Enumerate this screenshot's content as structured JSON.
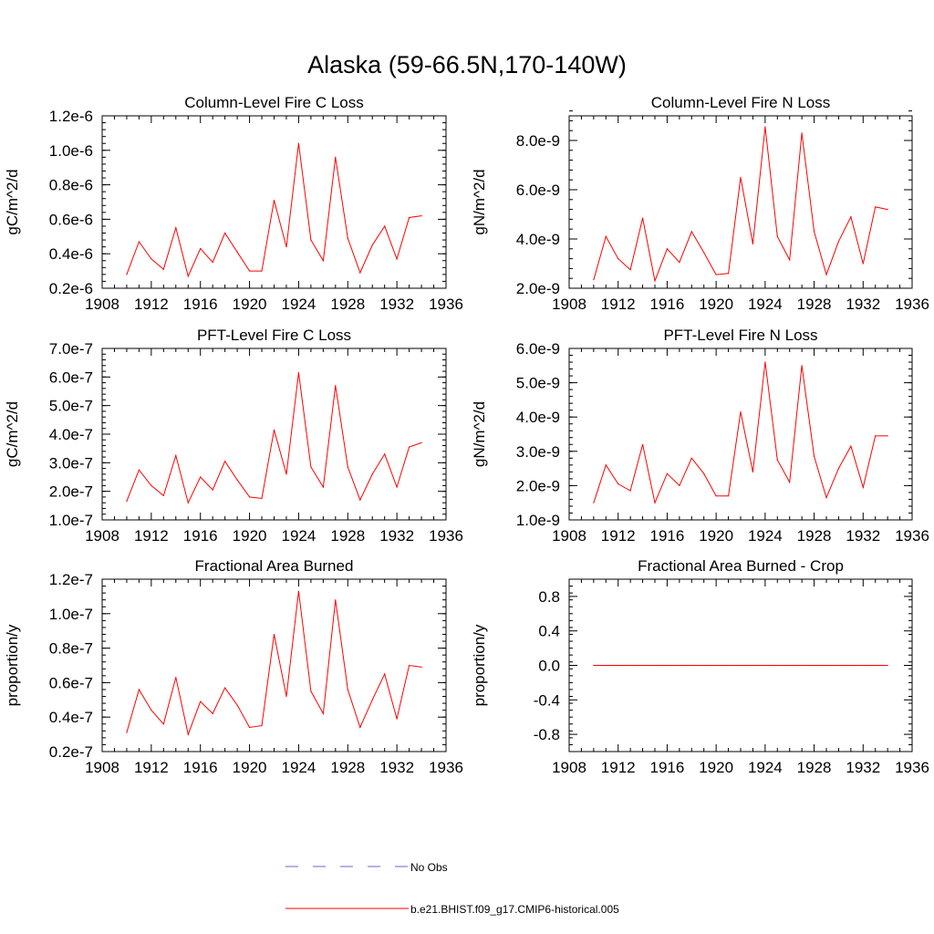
{
  "main_title": "Alaska (59-66.5N,170-140W)",
  "colors": {
    "model_line": "#ff0000",
    "obs_line": "#6666cc",
    "axis": "#000000"
  },
  "legend": {
    "obs_label": "No Obs",
    "model_label": "b.e21.BHIST.f09_g17.CMIP6-historical.005"
  },
  "chart_data": [
    {
      "type": "line",
      "title": "Column-Level Fire C Loss",
      "ylabel": "gC/m^2/d",
      "xlabel": "",
      "xlim": [
        1908,
        1936
      ],
      "ylim": [
        2e-07,
        1.2e-06
      ],
      "xticks": [
        "1908",
        "1912",
        "1916",
        "1920",
        "1924",
        "1928",
        "1932",
        "1936"
      ],
      "yticks": [
        {
          "value": 2e-07,
          "label": "0.2e-6"
        },
        {
          "value": 4e-07,
          "label": "0.4e-6"
        },
        {
          "value": 6e-07,
          "label": "0.6e-6"
        },
        {
          "value": 8e-07,
          "label": "0.8e-6"
        },
        {
          "value": 1e-06,
          "label": "1.0e-6"
        },
        {
          "value": 1.2e-06,
          "label": "1.2e-6"
        }
      ],
      "x": [
        1910,
        1911,
        1912,
        1913,
        1914,
        1915,
        1916,
        1917,
        1918,
        1919,
        1920,
        1921,
        1922,
        1923,
        1924,
        1925,
        1926,
        1927,
        1928,
        1929,
        1930,
        1931,
        1932,
        1933,
        1934
      ],
      "series": [
        {
          "name": "b.e21.BHIST.f09_g17.CMIP6-historical.005",
          "values": [
            2.8e-07,
            4.7e-07,
            3.7e-07,
            3.1e-07,
            5.5e-07,
            2.7e-07,
            4.3e-07,
            3.5e-07,
            5.2e-07,
            4.1e-07,
            3e-07,
            3e-07,
            7.1e-07,
            4.4e-07,
            1.04e-06,
            4.8e-07,
            3.6e-07,
            9.6e-07,
            4.9e-07,
            2.9e-07,
            4.5e-07,
            5.6e-07,
            3.7e-07,
            6.1e-07,
            6.2e-07
          ]
        }
      ]
    },
    {
      "type": "line",
      "title": "Column-Level Fire N Loss",
      "ylabel": "gN/m^2/d",
      "xlabel": "",
      "xlim": [
        1908,
        1936
      ],
      "ylim": [
        2e-09,
        9e-09
      ],
      "xticks": [
        "1908",
        "1912",
        "1916",
        "1920",
        "1924",
        "1928",
        "1932",
        "1936"
      ],
      "yticks": [
        {
          "value": 2e-09,
          "label": "2.0e-9"
        },
        {
          "value": 4e-09,
          "label": "4.0e-9"
        },
        {
          "value": 6e-09,
          "label": "6.0e-9"
        },
        {
          "value": 8e-09,
          "label": "8.0e-9"
        }
      ],
      "x": [
        1910,
        1911,
        1912,
        1913,
        1914,
        1915,
        1916,
        1917,
        1918,
        1919,
        1920,
        1921,
        1922,
        1923,
        1924,
        1925,
        1926,
        1927,
        1928,
        1929,
        1930,
        1931,
        1932,
        1933,
        1934
      ],
      "series": [
        {
          "name": "b.e21.BHIST.f09_g17.CMIP6-historical.005",
          "values": [
            2.35e-09,
            4.1e-09,
            3.2e-09,
            2.75e-09,
            4.85e-09,
            2.3e-09,
            3.6e-09,
            3.05e-09,
            4.3e-09,
            3.45e-09,
            2.55e-09,
            2.6e-09,
            6.5e-09,
            3.8e-09,
            8.55e-09,
            4.1e-09,
            3.15e-09,
            8.3e-09,
            4.3e-09,
            2.55e-09,
            3.9e-09,
            4.9e-09,
            3e-09,
            5.3e-09,
            5.2e-09
          ]
        }
      ]
    },
    {
      "type": "line",
      "title": "PFT-Level Fire C Loss",
      "ylabel": "gC/m^2/d",
      "xlabel": "",
      "xlim": [
        1908,
        1936
      ],
      "ylim": [
        1e-07,
        7e-07
      ],
      "xticks": [
        "1908",
        "1912",
        "1916",
        "1920",
        "1924",
        "1928",
        "1932",
        "1936"
      ],
      "yticks": [
        {
          "value": 1e-07,
          "label": "1.0e-7"
        },
        {
          "value": 2e-07,
          "label": "2.0e-7"
        },
        {
          "value": 3e-07,
          "label": "3.0e-7"
        },
        {
          "value": 4e-07,
          "label": "4.0e-7"
        },
        {
          "value": 5e-07,
          "label": "5.0e-7"
        },
        {
          "value": 6e-07,
          "label": "6.0e-7"
        },
        {
          "value": 7e-07,
          "label": "7.0e-7"
        }
      ],
      "x": [
        1910,
        1911,
        1912,
        1913,
        1914,
        1915,
        1916,
        1917,
        1918,
        1919,
        1920,
        1921,
        1922,
        1923,
        1924,
        1925,
        1926,
        1927,
        1928,
        1929,
        1930,
        1931,
        1932,
        1933,
        1934
      ],
      "series": [
        {
          "name": "b.e21.BHIST.f09_g17.CMIP6-historical.005",
          "values": [
            1.65e-07,
            2.75e-07,
            2.2e-07,
            1.85e-07,
            3.25e-07,
            1.6e-07,
            2.5e-07,
            2.05e-07,
            3.05e-07,
            2.4e-07,
            1.8e-07,
            1.75e-07,
            4.15e-07,
            2.6e-07,
            6.15e-07,
            2.85e-07,
            2.15e-07,
            5.7e-07,
            2.85e-07,
            1.7e-07,
            2.6e-07,
            3.3e-07,
            2.15e-07,
            3.55e-07,
            3.7e-07
          ]
        }
      ]
    },
    {
      "type": "line",
      "title": "PFT-Level Fire N Loss",
      "ylabel": "gN/m^2/d",
      "xlabel": "",
      "xlim": [
        1908,
        1936
      ],
      "ylim": [
        1e-09,
        6e-09
      ],
      "xticks": [
        "1908",
        "1912",
        "1916",
        "1920",
        "1924",
        "1928",
        "1932",
        "1936"
      ],
      "yticks": [
        {
          "value": 1e-09,
          "label": "1.0e-9"
        },
        {
          "value": 2e-09,
          "label": "2.0e-9"
        },
        {
          "value": 3e-09,
          "label": "3.0e-9"
        },
        {
          "value": 4e-09,
          "label": "4.0e-9"
        },
        {
          "value": 5e-09,
          "label": "5.0e-9"
        },
        {
          "value": 6e-09,
          "label": "6.0e-9"
        }
      ],
      "x": [
        1910,
        1911,
        1912,
        1913,
        1914,
        1915,
        1916,
        1917,
        1918,
        1919,
        1920,
        1921,
        1922,
        1923,
        1924,
        1925,
        1926,
        1927,
        1928,
        1929,
        1930,
        1931,
        1932,
        1933,
        1934
      ],
      "series": [
        {
          "name": "b.e21.BHIST.f09_g17.CMIP6-historical.005",
          "values": [
            1.5e-09,
            2.6e-09,
            2.05e-09,
            1.85e-09,
            3.2e-09,
            1.5e-09,
            2.35e-09,
            2e-09,
            2.8e-09,
            2.35e-09,
            1.7e-09,
            1.7e-09,
            4.15e-09,
            2.4e-09,
            5.6e-09,
            2.75e-09,
            2.1e-09,
            5.5e-09,
            2.85e-09,
            1.65e-09,
            2.5e-09,
            3.15e-09,
            1.95e-09,
            3.45e-09,
            3.45e-09
          ]
        }
      ]
    },
    {
      "type": "line",
      "title": "Fractional Area Burned",
      "ylabel": "proportion/y",
      "xlabel": "",
      "xlim": [
        1908,
        1936
      ],
      "ylim": [
        2e-08,
        1.2e-07
      ],
      "xticks": [
        "1908",
        "1912",
        "1916",
        "1920",
        "1924",
        "1928",
        "1932",
        "1936"
      ],
      "yticks": [
        {
          "value": 2e-08,
          "label": "0.2e-7"
        },
        {
          "value": 4e-08,
          "label": "0.4e-7"
        },
        {
          "value": 6e-08,
          "label": "0.6e-7"
        },
        {
          "value": 8e-08,
          "label": "0.8e-7"
        },
        {
          "value": 1e-07,
          "label": "1.0e-7"
        },
        {
          "value": 1.2e-07,
          "label": "1.2e-7"
        }
      ],
      "x": [
        1910,
        1911,
        1912,
        1913,
        1914,
        1915,
        1916,
        1917,
        1918,
        1919,
        1920,
        1921,
        1922,
        1923,
        1924,
        1925,
        1926,
        1927,
        1928,
        1929,
        1930,
        1931,
        1932,
        1933,
        1934
      ],
      "series": [
        {
          "name": "b.e21.BHIST.f09_g17.CMIP6-historical.005",
          "values": [
            3.1e-08,
            5.6e-08,
            4.4e-08,
            3.6e-08,
            6.3e-08,
            3e-08,
            4.9e-08,
            4.2e-08,
            5.7e-08,
            4.7e-08,
            3.4e-08,
            3.5e-08,
            8.8e-08,
            5.2e-08,
            1.13e-07,
            5.5e-08,
            4.2e-08,
            1.08e-07,
            5.6e-08,
            3.4e-08,
            5e-08,
            6.5e-08,
            3.9e-08,
            7e-08,
            6.9e-08
          ]
        }
      ]
    },
    {
      "type": "line",
      "title": "Fractional Area Burned - Crop",
      "ylabel": "proportion/y",
      "xlabel": "",
      "xlim": [
        1908,
        1936
      ],
      "ylim": [
        -1.0,
        1.0
      ],
      "xticks": [
        "1908",
        "1912",
        "1916",
        "1920",
        "1924",
        "1928",
        "1932",
        "1936"
      ],
      "yticks": [
        {
          "value": -0.8,
          "label": "-0.8"
        },
        {
          "value": -0.4,
          "label": "-0.4"
        },
        {
          "value": 0.0,
          "label": "0.0"
        },
        {
          "value": 0.4,
          "label": "0.4"
        },
        {
          "value": 0.8,
          "label": "0.8"
        }
      ],
      "x": [
        1910,
        1911,
        1912,
        1913,
        1914,
        1915,
        1916,
        1917,
        1918,
        1919,
        1920,
        1921,
        1922,
        1923,
        1924,
        1925,
        1926,
        1927,
        1928,
        1929,
        1930,
        1931,
        1932,
        1933,
        1934
      ],
      "series": [
        {
          "name": "b.e21.BHIST.f09_g17.CMIP6-historical.005",
          "values": [
            0,
            0,
            0,
            0,
            0,
            0,
            0,
            0,
            0,
            0,
            0,
            0,
            0,
            0,
            0,
            0,
            0,
            0,
            0,
            0,
            0,
            0,
            0,
            0,
            0
          ]
        }
      ]
    }
  ]
}
